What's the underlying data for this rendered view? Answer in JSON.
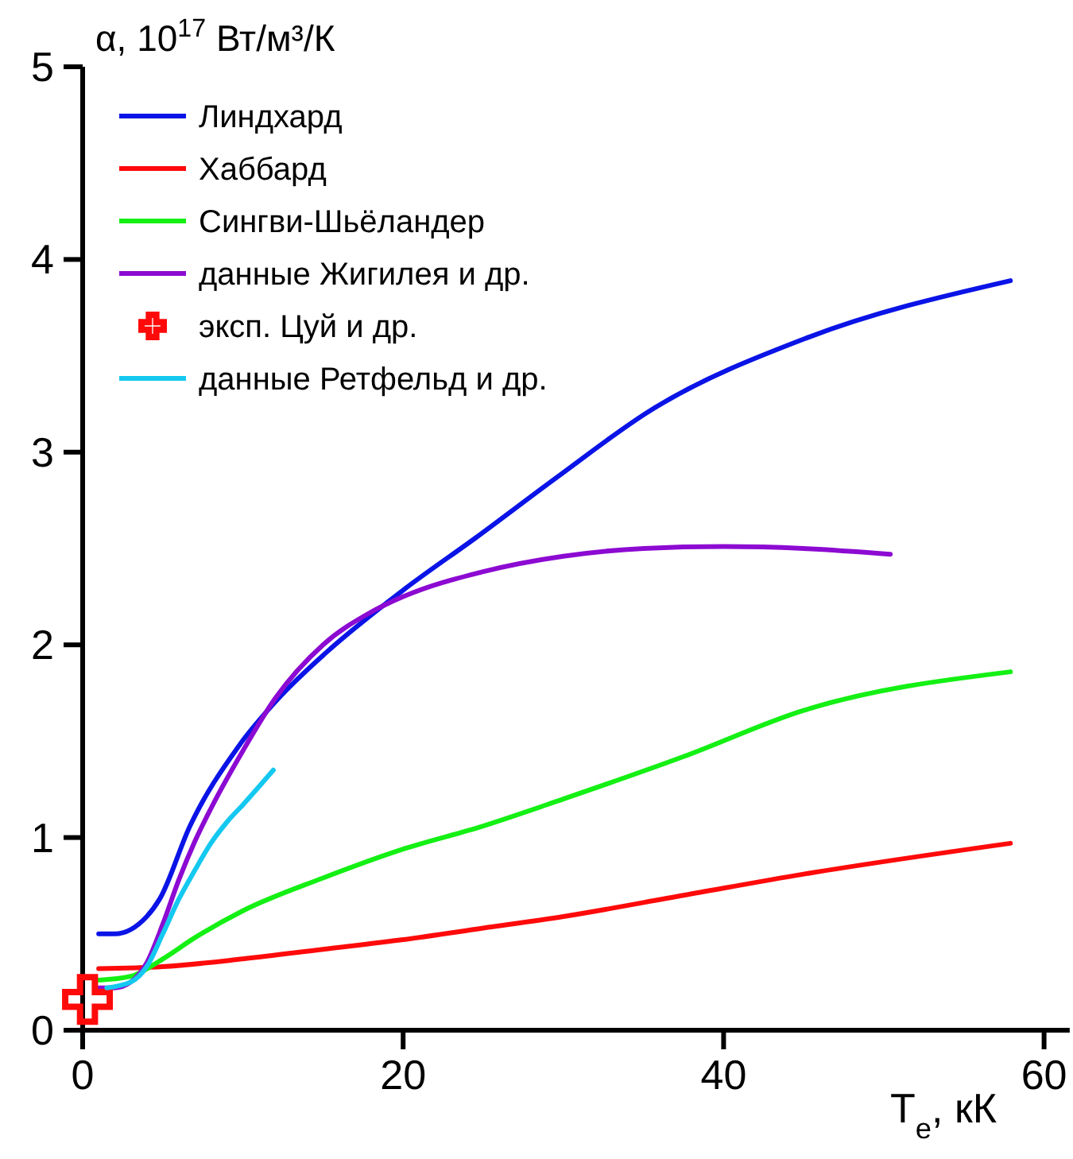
{
  "chart_data": {
    "type": "line",
    "xlabel": "T$_{e}$, кК",
    "ylabel": "α,  10$^{17}$ Вт/м³/К",
    "xlim": [
      0,
      61.6
    ],
    "ylim": [
      0,
      5
    ],
    "xticks": [
      0,
      20,
      40,
      60
    ],
    "yticks": [
      0,
      1,
      2,
      3,
      4,
      5
    ],
    "grid": false,
    "legend": "top left",
    "line_style": "solid",
    "series": [
      {
        "name": "Линдхард",
        "color": "#0a14e6",
        "x": [
          1,
          2,
          4,
          4.8,
          6.7,
          9.7,
          12.2,
          15.2,
          20.1,
          24.6,
          29.6,
          35.5,
          45.1,
          57.9
        ],
        "values": [
          0.5,
          0.5,
          0.59,
          0.68,
          1.06,
          1.47,
          1.72,
          1.96,
          2.29,
          2.56,
          2.87,
          3.22,
          3.59,
          3.89
        ]
      },
      {
        "name": "Хаббард",
        "color": "#ff0a0a",
        "x": [
          1,
          5,
          10,
          15,
          20,
          25,
          30,
          37.5,
          45,
          57.9
        ],
        "values": [
          0.32,
          0.33,
          0.37,
          0.42,
          0.47,
          0.53,
          0.59,
          0.7,
          0.81,
          0.97
        ]
      },
      {
        "name": "Сингви-Шьёландер",
        "color": "#14f014",
        "x": [
          1,
          3,
          5,
          7,
          10,
          15,
          20,
          25,
          30,
          37.5,
          45,
          57.9
        ],
        "values": [
          0.26,
          0.28,
          0.37,
          0.48,
          0.62,
          0.79,
          0.94,
          1.06,
          1.2,
          1.42,
          1.66,
          1.86
        ]
      },
      {
        "name": "данные Жигилея и др.",
        "color": "#8c0ad2",
        "x": [
          1,
          2,
          3,
          4,
          5,
          6,
          7,
          8,
          10,
          12,
          15,
          18,
          20,
          25,
          30,
          35,
          40,
          45,
          50.4
        ],
        "values": [
          0.22,
          0.22,
          0.25,
          0.35,
          0.55,
          0.78,
          0.98,
          1.15,
          1.45,
          1.72,
          2,
          2.17,
          2.25,
          2.38,
          2.46,
          2.5,
          2.51,
          2.5,
          2.47
        ]
      },
      {
        "name": "эксп. Цуй и др.",
        "type": "scatter",
        "marker": "cross",
        "color": "#ff0a0a",
        "x": [
          0.3
        ],
        "values": [
          0.16
        ]
      },
      {
        "name": "данные Ретфельд и др.",
        "color": "#14c8f0",
        "x": [
          1.5,
          3,
          4,
          5,
          6,
          7,
          8,
          9,
          10,
          11.9
        ],
        "values": [
          0.22,
          0.25,
          0.33,
          0.5,
          0.68,
          0.83,
          0.97,
          1.08,
          1.17,
          1.35
        ]
      }
    ]
  }
}
